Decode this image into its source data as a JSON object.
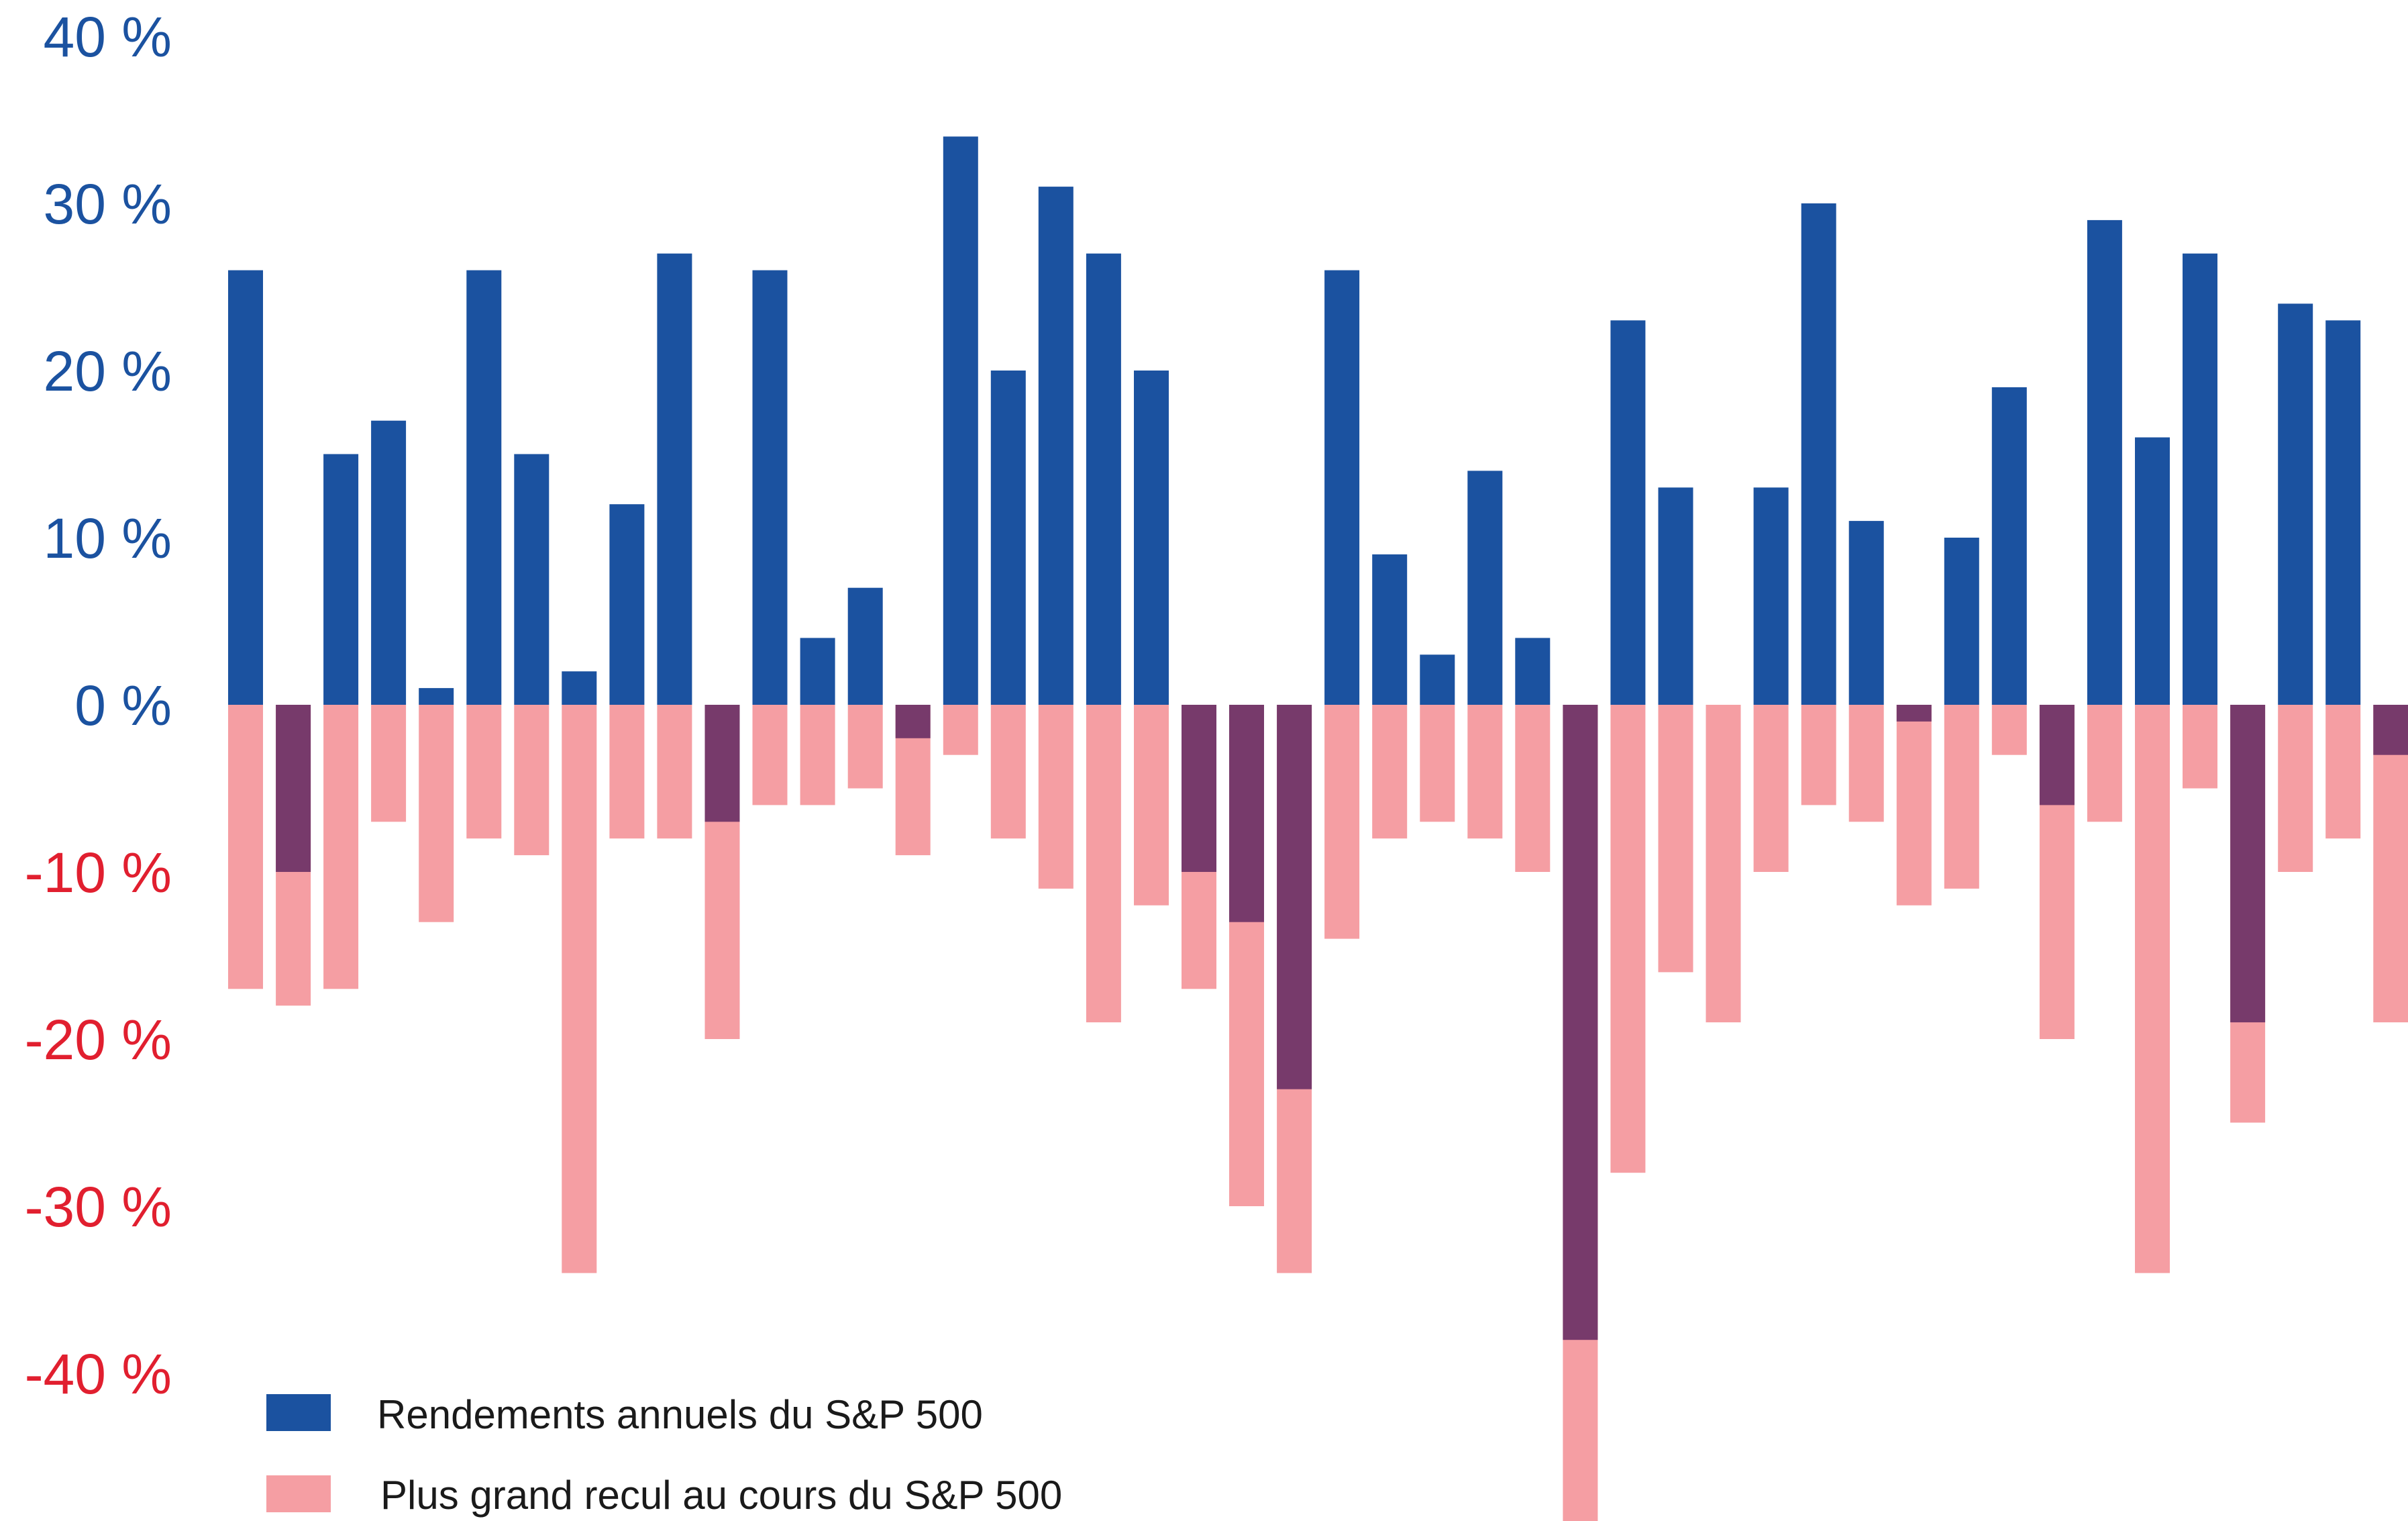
{
  "colors": {
    "return": "#1b52a0",
    "drawdown": "#f59ea3",
    "negative_year": "#773a6b",
    "tick_positive": "#1b52a0",
    "tick_negative": "#e11f2f"
  },
  "legend": {
    "returns_label": "Rendements annuels du S&P 500",
    "drawdown_label": "Plus grand recul au cours du S&P 500",
    "placement": "bottom-left"
  },
  "chart_data": {
    "type": "bar",
    "title": "",
    "xlabel": "",
    "ylabel": "",
    "ylim": [
      -48.5,
      41
    ],
    "grid": false,
    "y_ticks": [
      {
        "value": 40,
        "label": "40 %"
      },
      {
        "value": 30,
        "label": "30 %"
      },
      {
        "value": 20,
        "label": "20 %"
      },
      {
        "value": 10,
        "label": "10 %"
      },
      {
        "value": 0,
        "label": "0 %"
      },
      {
        "value": -10,
        "label": "-10 %"
      },
      {
        "value": -20,
        "label": "-20 %"
      },
      {
        "value": -30,
        "label": "-30 %"
      },
      {
        "value": -40,
        "label": "-40 %"
      }
    ],
    "series": [
      {
        "name": "Rendements annuels du S&P 500",
        "values": [
          26,
          -10,
          15,
          17,
          1,
          26,
          15,
          2,
          12,
          27,
          -7,
          26,
          4,
          7,
          -2,
          34,
          20,
          31,
          27,
          20,
          -10,
          -13,
          -23,
          26,
          9,
          3,
          14,
          4,
          -38,
          23,
          13,
          0,
          13,
          30,
          11,
          -1,
          10,
          19,
          -6,
          29,
          16,
          27,
          -19,
          24,
          23,
          -3
        ]
      },
      {
        "name": "Plus grand recul au cours du S&P 500",
        "values": [
          -17,
          -18,
          -17,
          -7,
          -13,
          -8,
          -9,
          -34,
          -8,
          -8,
          -20,
          -6,
          -6,
          -5,
          -9,
          -3,
          -8,
          -11,
          -19,
          -12,
          -17,
          -30,
          -34,
          -14,
          -8,
          -7,
          -8,
          -10,
          -49,
          -28,
          -16,
          -19,
          -10,
          -6,
          -7,
          -12,
          -11,
          -3,
          -20,
          -7,
          -34,
          -5,
          -25,
          -10,
          -8,
          -19
        ]
      }
    ]
  }
}
